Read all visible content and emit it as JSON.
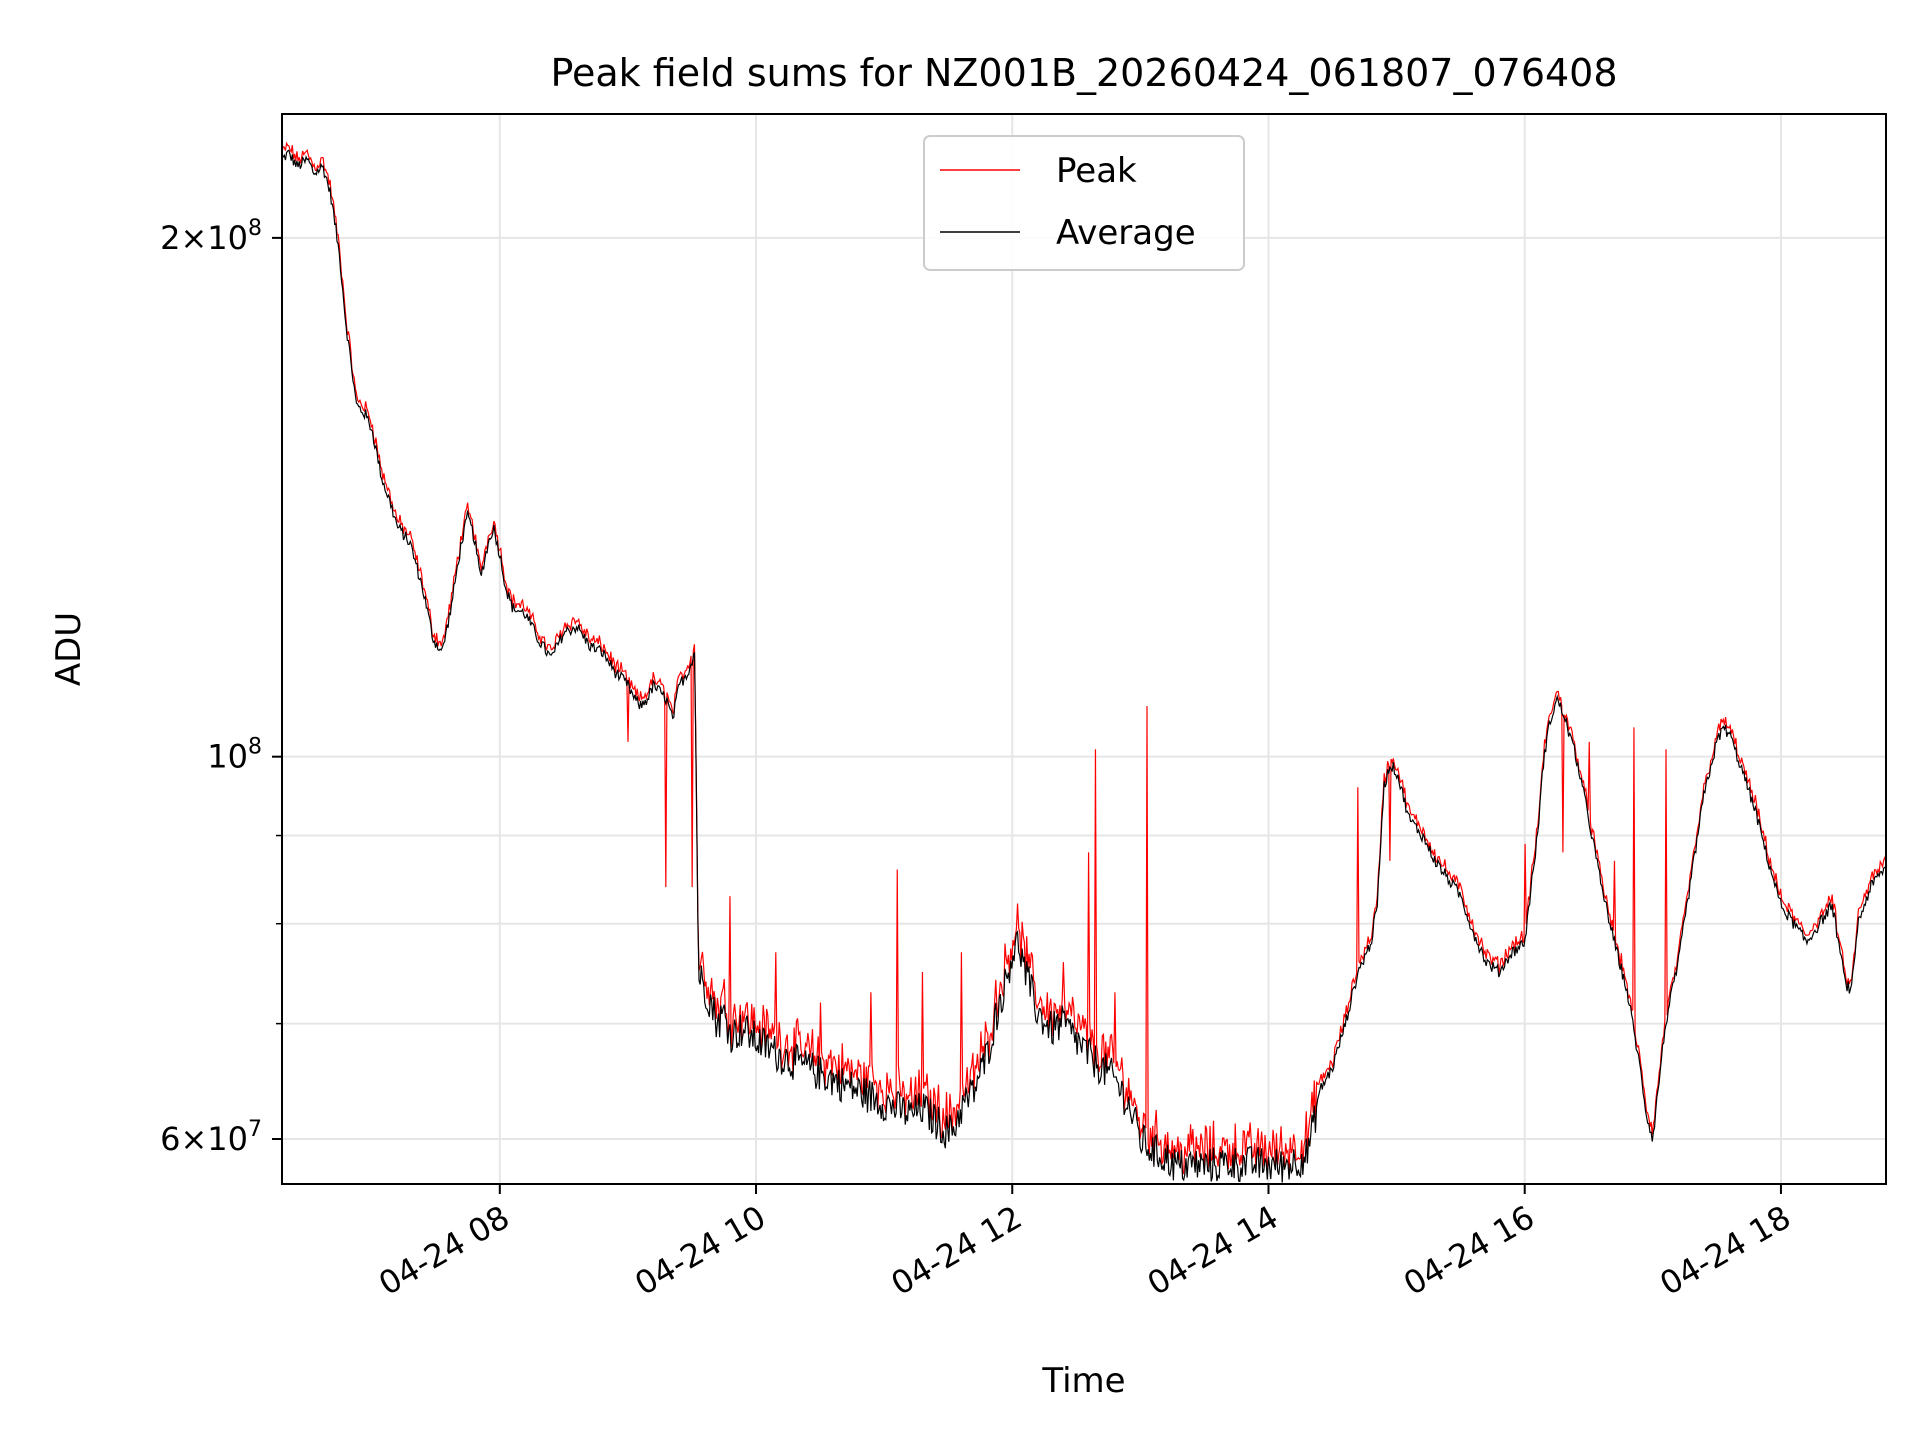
{
  "chart_data": {
    "type": "line",
    "title": "Peak field sums for NZ001B_20260424_061807_076408",
    "xlabel": "Time",
    "ylabel": "ADU",
    "y_scale": "log",
    "ylim": [
      56500000,
      236000000
    ],
    "xlim_hours": [
      6.3,
      18.82
    ],
    "grid": true,
    "legend_position": "upper center",
    "x_tick_hours": [
      8,
      10,
      12,
      14,
      16,
      18
    ],
    "x_tick_labels": [
      "04-24 08",
      "04-24 10",
      "04-24 12",
      "04-24 14",
      "04-24 16",
      "04-24 18"
    ],
    "y_major_ticks": [
      {
        "value": 200000000,
        "mantissa": "2",
        "exponent": "8"
      },
      {
        "value": 100000000,
        "mantissa": "",
        "exponent": "8"
      },
      {
        "value": 60000000,
        "mantissa": "6",
        "exponent": "7"
      }
    ],
    "y_minor_grid": [
      70000000,
      80000000,
      90000000
    ],
    "series": [
      {
        "name": "Peak",
        "color": "#ff0000",
        "spikes": [
          [
            9.0,
            102000000
          ],
          [
            9.3,
            84000000
          ],
          [
            9.5,
            84000000
          ],
          [
            9.8,
            83000000
          ],
          [
            10.15,
            77000000
          ],
          [
            10.5,
            72000000
          ],
          [
            10.9,
            73000000
          ],
          [
            11.1,
            86000000
          ],
          [
            11.3,
            75000000
          ],
          [
            11.6,
            77000000
          ],
          [
            12.4,
            76000000
          ],
          [
            12.6,
            88000000
          ],
          [
            12.65,
            101000000
          ],
          [
            12.8,
            73000000
          ],
          [
            13.05,
            107000000
          ],
          [
            14.7,
            96000000
          ],
          [
            14.95,
            87000000
          ],
          [
            16.0,
            89000000
          ],
          [
            16.3,
            88000000
          ],
          [
            16.5,
            102000000
          ],
          [
            16.7,
            87000000
          ],
          [
            16.85,
            104000000
          ],
          [
            17.1,
            101000000
          ],
          [
            17.8,
            95000000
          ]
        ]
      },
      {
        "name": "Average",
        "color": "#000000",
        "points": [
          [
            6.3,
            222000000
          ],
          [
            6.35,
            224000000
          ],
          [
            6.42,
            220000000
          ],
          [
            6.5,
            222000000
          ],
          [
            6.55,
            218000000
          ],
          [
            6.62,
            220000000
          ],
          [
            6.68,
            212000000
          ],
          [
            6.75,
            195000000
          ],
          [
            6.8,
            178000000
          ],
          [
            6.88,
            160000000
          ],
          [
            6.95,
            158000000
          ],
          [
            7.0,
            155000000
          ],
          [
            7.08,
            145000000
          ],
          [
            7.15,
            140000000
          ],
          [
            7.2,
            136000000
          ],
          [
            7.3,
            133000000
          ],
          [
            7.4,
            125000000
          ],
          [
            7.48,
            117000000
          ],
          [
            7.55,
            115000000
          ],
          [
            7.62,
            122000000
          ],
          [
            7.7,
            133000000
          ],
          [
            7.75,
            138000000
          ],
          [
            7.8,
            134000000
          ],
          [
            7.85,
            127000000
          ],
          [
            7.9,
            132000000
          ],
          [
            7.95,
            136000000
          ],
          [
            8.0,
            131000000
          ],
          [
            8.05,
            125000000
          ],
          [
            8.1,
            122000000
          ],
          [
            8.2,
            121000000
          ],
          [
            8.3,
            117000000
          ],
          [
            8.4,
            114000000
          ],
          [
            8.5,
            118000000
          ],
          [
            8.6,
            119000000
          ],
          [
            8.7,
            116000000
          ],
          [
            8.8,
            115000000
          ],
          [
            8.9,
            112000000
          ],
          [
            8.95,
            111000000
          ],
          [
            9.0,
            110000000
          ],
          [
            9.05,
            108000000
          ],
          [
            9.1,
            107000000
          ],
          [
            9.15,
            108000000
          ],
          [
            9.2,
            110000000
          ],
          [
            9.3,
            108000000
          ],
          [
            9.35,
            105000000
          ],
          [
            9.4,
            110000000
          ],
          [
            9.47,
            112000000
          ],
          [
            9.52,
            115000000
          ],
          [
            9.55,
            75000000
          ],
          [
            9.58,
            74000000
          ],
          [
            9.65,
            72000000
          ],
          [
            9.7,
            70000000
          ],
          [
            9.75,
            71000000
          ],
          [
            9.8,
            69000000
          ],
          [
            9.9,
            69500000
          ],
          [
            10.0,
            68500000
          ],
          [
            10.2,
            67000000
          ],
          [
            10.4,
            66000000
          ],
          [
            10.6,
            65000000
          ],
          [
            10.8,
            64000000
          ],
          [
            11.0,
            63000000
          ],
          [
            11.2,
            62000000
          ],
          [
            11.3,
            62500000
          ],
          [
            11.4,
            61500000
          ],
          [
            11.5,
            60500000
          ],
          [
            11.55,
            61000000
          ],
          [
            11.6,
            62500000
          ],
          [
            11.7,
            64000000
          ],
          [
            11.8,
            67000000
          ],
          [
            11.9,
            72000000
          ],
          [
            11.95,
            74000000
          ],
          [
            12.0,
            77000000
          ],
          [
            12.05,
            78000000
          ],
          [
            12.1,
            75000000
          ],
          [
            12.2,
            71000000
          ],
          [
            12.3,
            69500000
          ],
          [
            12.4,
            70000000
          ],
          [
            12.5,
            68500000
          ],
          [
            12.6,
            67000000
          ],
          [
            12.7,
            66000000
          ],
          [
            12.8,
            65000000
          ],
          [
            12.9,
            63000000
          ],
          [
            13.0,
            60000000
          ],
          [
            13.1,
            59000000
          ],
          [
            13.2,
            58500000
          ],
          [
            13.3,
            57800000
          ],
          [
            13.4,
            58000000
          ],
          [
            13.5,
            57900000
          ],
          [
            13.7,
            58100000
          ],
          [
            13.9,
            58000000
          ],
          [
            14.1,
            57900000
          ],
          [
            14.2,
            58200000
          ],
          [
            14.3,
            58800000
          ],
          [
            14.35,
            61000000
          ],
          [
            14.4,
            64000000
          ],
          [
            14.5,
            66000000
          ],
          [
            14.6,
            70000000
          ],
          [
            14.7,
            75000000
          ],
          [
            14.8,
            78000000
          ],
          [
            14.85,
            82000000
          ],
          [
            14.9,
            96000000
          ],
          [
            14.95,
            99000000
          ],
          [
            15.0,
            98000000
          ],
          [
            15.1,
            92000000
          ],
          [
            15.2,
            90000000
          ],
          [
            15.3,
            87000000
          ],
          [
            15.4,
            85000000
          ],
          [
            15.5,
            83000000
          ],
          [
            15.6,
            79000000
          ],
          [
            15.7,
            76000000
          ],
          [
            15.8,
            75000000
          ],
          [
            15.9,
            77000000
          ],
          [
            16.0,
            78000000
          ],
          [
            16.1,
            90000000
          ],
          [
            16.15,
            100000000
          ],
          [
            16.2,
            105000000
          ],
          [
            16.25,
            108000000
          ],
          [
            16.3,
            106000000
          ],
          [
            16.4,
            100000000
          ],
          [
            16.5,
            92000000
          ],
          [
            16.6,
            84000000
          ],
          [
            16.7,
            78000000
          ],
          [
            16.8,
            73000000
          ],
          [
            16.9,
            66000000
          ],
          [
            16.95,
            62000000
          ],
          [
            17.0,
            60000000
          ],
          [
            17.05,
            65000000
          ],
          [
            17.1,
            70000000
          ],
          [
            17.2,
            76000000
          ],
          [
            17.3,
            85000000
          ],
          [
            17.4,
            95000000
          ],
          [
            17.5,
            102000000
          ],
          [
            17.55,
            104000000
          ],
          [
            17.6,
            103000000
          ],
          [
            17.7,
            98000000
          ],
          [
            17.8,
            93000000
          ],
          [
            17.9,
            87000000
          ],
          [
            18.0,
            82000000
          ],
          [
            18.1,
            80000000
          ],
          [
            18.2,
            78000000
          ],
          [
            18.3,
            80000000
          ],
          [
            18.4,
            82000000
          ],
          [
            18.45,
            78000000
          ],
          [
            18.5,
            74000000
          ],
          [
            18.55,
            73000000
          ],
          [
            18.6,
            80000000
          ],
          [
            18.7,
            84000000
          ],
          [
            18.8,
            86000000
          ]
        ]
      }
    ]
  }
}
